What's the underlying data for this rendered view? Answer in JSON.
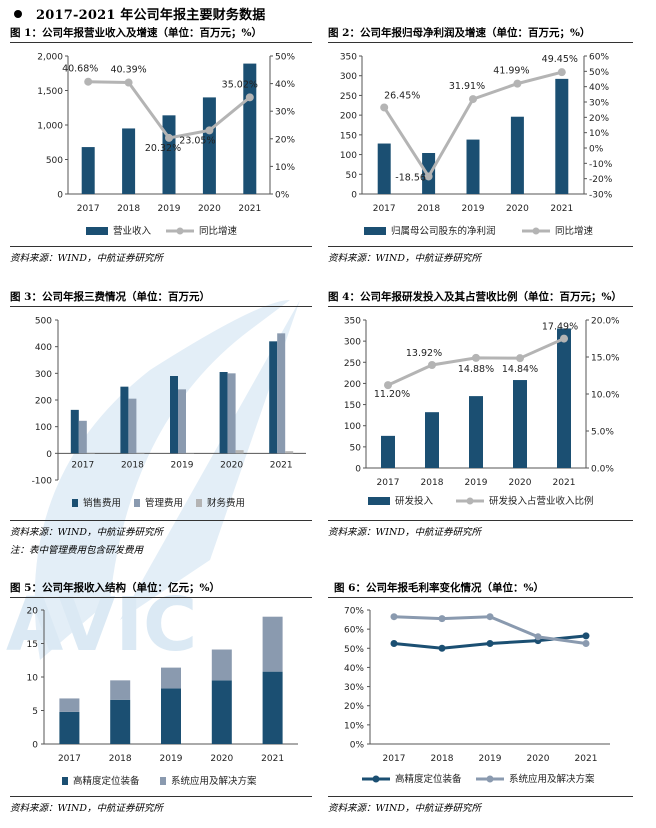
{
  "header": {
    "title": "2017-2021 年公司年报主要财务数据"
  },
  "colors": {
    "dark": "#1b4f72",
    "grey": "#b4b4b4",
    "mid": "#8a9aaf",
    "wm": "#dbe9f4"
  },
  "watermark": {
    "text": "AVIC"
  },
  "chart_data": [
    {
      "id": "fig1",
      "type": "bar+line",
      "title": "图 1：公司年报营业收入及增速（单位：百万元；%）",
      "categories": [
        "2017",
        "2018",
        "2019",
        "2020",
        "2021"
      ],
      "bars": {
        "name": "营业收入",
        "values": [
          680,
          950,
          1140,
          1400,
          1890
        ]
      },
      "line": {
        "name": "同比增速",
        "values": [
          40.68,
          40.39,
          20.32,
          23.05,
          35.02
        ],
        "labels": [
          "40.68%",
          "40.39%",
          "20.32%",
          "23.05%",
          "35.02%"
        ]
      },
      "left_axis": {
        "min": 0,
        "max": 2000,
        "ticks": [
          "0",
          "500",
          "1,000",
          "1,500",
          "2,000"
        ],
        "tick_values": [
          0,
          500,
          1000,
          1500,
          2000
        ]
      },
      "right_axis": {
        "min": 0,
        "max": 50,
        "ticks": [
          "0%",
          "10%",
          "20%",
          "30%",
          "40%",
          "50%"
        ],
        "tick_values": [
          0,
          10,
          20,
          30,
          40,
          50
        ]
      },
      "source": "资料来源：WIND，中航证券研究所"
    },
    {
      "id": "fig2",
      "type": "bar+line",
      "title": "图 2：公司年报归母净利润及增速（单位：百万元；%）",
      "categories": [
        "2017",
        "2018",
        "2019",
        "2020",
        "2021"
      ],
      "bars": {
        "name": "归属母公司股东的净利润",
        "values": [
          128,
          104,
          138,
          196,
          292
        ]
      },
      "line": {
        "name": "同比增速",
        "values": [
          26.45,
          -18.56,
          31.91,
          41.99,
          49.45
        ],
        "labels": [
          "26.45%",
          "-18.56",
          "31.91%",
          "41.99%",
          "49.45%"
        ]
      },
      "left_axis": {
        "min": 0,
        "max": 350,
        "ticks": [
          "0",
          "50",
          "100",
          "150",
          "200",
          "250",
          "300",
          "350"
        ],
        "tick_values": [
          0,
          50,
          100,
          150,
          200,
          250,
          300,
          350
        ]
      },
      "right_axis": {
        "min": -30,
        "max": 60,
        "ticks": [
          "-30%",
          "-20%",
          "-10%",
          "0%",
          "10%",
          "20%",
          "30%",
          "40%",
          "50%",
          "60%"
        ],
        "tick_values": [
          -30,
          -20,
          -10,
          0,
          10,
          20,
          30,
          40,
          50,
          60
        ]
      },
      "source": "资料来源：WIND，中航证券研究所"
    },
    {
      "id": "fig3",
      "type": "grouped-bar",
      "title": "图 3：公司年报三费情况（单位：百万元）",
      "categories": [
        "2017",
        "2018",
        "2019",
        "2020",
        "2021"
      ],
      "series": [
        {
          "name": "销售费用",
          "values": [
            163,
            250,
            290,
            305,
            420
          ]
        },
        {
          "name": "管理费用",
          "values": [
            122,
            205,
            240,
            300,
            450
          ]
        },
        {
          "name": "财务费用",
          "values": [
            2,
            2,
            1,
            12,
            8
          ]
        }
      ],
      "left_axis": {
        "min": -100,
        "max": 500,
        "ticks": [
          "-100",
          "0",
          "100",
          "200",
          "300",
          "400",
          "500"
        ],
        "tick_values": [
          -100,
          0,
          100,
          200,
          300,
          400,
          500
        ]
      },
      "source": "资料来源：WIND，中航证券研究所",
      "note": "注：表中管理费用包含研发费用"
    },
    {
      "id": "fig4",
      "type": "bar+line",
      "title": "图 4：公司年报研发投入及其占营收比例（单位：百万元；%）",
      "categories": [
        "2017",
        "2018",
        "2019",
        "2020",
        "2021"
      ],
      "bars": {
        "name": "研发投入",
        "values": [
          76,
          132,
          170,
          208,
          330
        ]
      },
      "line": {
        "name": "研发投入占营业收入比例",
        "values": [
          11.2,
          13.92,
          14.88,
          14.84,
          17.49
        ],
        "labels": [
          "11.20%",
          "13.92%",
          "14.88%",
          "14.84%",
          "17.49%"
        ]
      },
      "left_axis": {
        "min": 0,
        "max": 350,
        "ticks": [
          "0",
          "50",
          "100",
          "150",
          "200",
          "250",
          "300",
          "350"
        ],
        "tick_values": [
          0,
          50,
          100,
          150,
          200,
          250,
          300,
          350
        ]
      },
      "right_axis": {
        "min": 0,
        "max": 20,
        "ticks": [
          "0.0%",
          "5.0%",
          "10.0%",
          "15.0%",
          "20.0%"
        ],
        "tick_values": [
          0,
          5,
          10,
          15,
          20
        ]
      },
      "source": "资料来源：WIND，中航证券研究所"
    },
    {
      "id": "fig5",
      "type": "stacked-bar",
      "title": "图 5：公司年报收入结构（单位：亿元；%）",
      "categories": [
        "2017",
        "2018",
        "2019",
        "2020",
        "2021"
      ],
      "series": [
        {
          "name": "高精度定位装备",
          "values": [
            4.8,
            6.6,
            8.3,
            9.5,
            10.8
          ]
        },
        {
          "name": "系统应用及解决方案",
          "values": [
            2.0,
            2.9,
            3.1,
            4.6,
            8.2
          ]
        }
      ],
      "left_axis": {
        "min": 0,
        "max": 20,
        "ticks": [
          "0",
          "5",
          "10",
          "15",
          "20"
        ],
        "tick_values": [
          0,
          5,
          10,
          15,
          20
        ]
      },
      "source": "资料来源：WIND，中航证券研究所"
    },
    {
      "id": "fig6",
      "type": "line",
      "title": "图 6：公司年报毛利率变化情况（单位：%）",
      "categories": [
        "2017",
        "2018",
        "2019",
        "2020",
        "2021"
      ],
      "series": [
        {
          "name": "高精度定位装备",
          "values": [
            52.5,
            50,
            52.5,
            54,
            56.5
          ]
        },
        {
          "name": "系统应用及解决方案",
          "values": [
            66.5,
            65.5,
            66.5,
            56,
            52.5
          ]
        }
      ],
      "left_axis": {
        "min": 0,
        "max": 70,
        "ticks": [
          "0%",
          "10%",
          "20%",
          "30%",
          "40%",
          "50%",
          "60%",
          "70%"
        ],
        "tick_values": [
          0,
          10,
          20,
          30,
          40,
          50,
          60,
          70
        ]
      },
      "source": "资料来源：WIND，中航证券研究所"
    }
  ]
}
